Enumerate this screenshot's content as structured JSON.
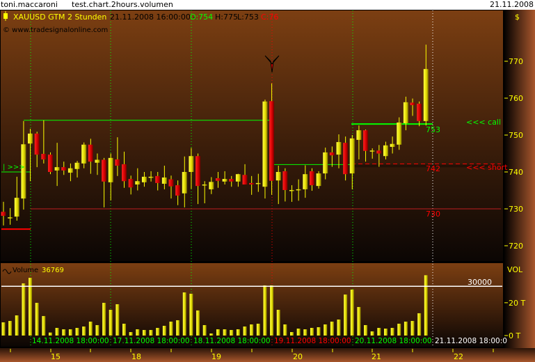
{
  "titlebar": {
    "user": "toni.maccaroni",
    "chart_name": "test.chart.2hours.volumen",
    "date": "21.11.2008"
  },
  "legend": {
    "symbol": "XAUUSD GTM 2 Stunden",
    "timestamp": "21.11.2008 16:00:00 -",
    "open": "O:754",
    "high": "H:775",
    "low": "L:753",
    "close": "C:76",
    "copyright": "© www.tradesignalonline.com",
    "volume_label": "Volume",
    "volume_value": "36769"
  },
  "price_axis": {
    "unit": "$",
    "ticks": [
      "770",
      "760",
      "750",
      "740",
      "730",
      "720"
    ]
  },
  "volume_axis": {
    "title": "VOL",
    "ticks": [
      "20 T",
      "0 T"
    ],
    "level_label": "30000"
  },
  "annotations": {
    "entry_marker": "|  >>>",
    "call_label": "<<<  call",
    "short_label": "<<<  short",
    "level_753": "753",
    "level_742": "742",
    "level_730": "730"
  },
  "session_labels": [
    {
      "text": "14.11.2008 18:00:00",
      "color": "#00ff00"
    },
    {
      "text": "17.11.2008 18:00:00",
      "color": "#00ff00"
    },
    {
      "text": "18.11.2008 18:00:00",
      "color": "#00ff00"
    },
    {
      "text": "19.11.2008 18:00:00",
      "color": "#ff0000"
    },
    {
      "text": "20.11.2008 18:00:00",
      "color": "#00ff00"
    },
    {
      "text": "21.11.2008 18:00:0",
      "color": "#ffffff"
    }
  ],
  "x_axis": {
    "labels": [
      "15",
      "18",
      "19",
      "20",
      "21",
      "22"
    ]
  },
  "colors": {
    "up": "#e8e000",
    "down": "#d40000",
    "call": "#00ff00",
    "short": "#ff0000",
    "axis_text": "#ffff00"
  },
  "chart_data": {
    "type": "candlestick",
    "title": "XAUUSD GTM 2 Stunden",
    "ylim": [
      716,
      777
    ],
    "volume_ylim": [
      0,
      45000
    ],
    "levels": {
      "call": 753,
      "short": 742,
      "support": 730
    },
    "candles": [
      [
        729.2,
        731.9,
        725.5,
        728.1
      ],
      [
        727.7,
        730.2,
        725.7,
        727.7
      ],
      [
        727.9,
        738.7,
        726.8,
        733.0
      ],
      [
        732.8,
        753.8,
        729.8,
        747.5
      ],
      [
        747.7,
        751.7,
        737.5,
        750.4
      ],
      [
        750.4,
        750.9,
        741.3,
        744.7
      ],
      [
        744.9,
        754.0,
        742.3,
        743.4
      ],
      [
        744.7,
        745.3,
        739.4,
        740.0
      ],
      [
        740.4,
        747.9,
        736.2,
        741.3
      ],
      [
        741.3,
        742.8,
        739.2,
        740.4
      ],
      [
        739.8,
        742.3,
        737.5,
        741.0
      ],
      [
        740.8,
        743.0,
        738.5,
        742.5
      ],
      [
        742.3,
        748.0,
        741.0,
        747.4
      ],
      [
        747.4,
        749.0,
        739.5,
        742.8
      ],
      [
        742.5,
        745.0,
        739.2,
        743.3
      ],
      [
        743.3,
        743.8,
        730.4,
        737.4
      ],
      [
        737.2,
        745.0,
        732.3,
        743.8
      ],
      [
        743.4,
        749.4,
        738.9,
        741.7
      ],
      [
        742.1,
        745.5,
        735.7,
        737.5
      ],
      [
        738.1,
        739.0,
        733.9,
        735.8
      ],
      [
        736.6,
        741.0,
        735.0,
        737.5
      ],
      [
        737.2,
        740.0,
        736.0,
        738.7
      ],
      [
        738.7,
        740.2,
        737.4,
        738.7
      ],
      [
        738.9,
        740.0,
        735.0,
        737.0
      ],
      [
        736.8,
        741.7,
        735.3,
        738.5
      ],
      [
        738.0,
        739.0,
        732.8,
        736.1
      ],
      [
        736.4,
        737.7,
        731.0,
        733.6
      ],
      [
        734.2,
        744.2,
        730.4,
        740.0
      ],
      [
        740.0,
        746.5,
        735.4,
        744.3
      ],
      [
        744.3,
        745.0,
        731.3,
        736.2
      ],
      [
        736.6,
        737.5,
        731.5,
        736.6
      ],
      [
        735.3,
        738.6,
        734.0,
        737.3
      ],
      [
        738.3,
        740.0,
        735.7,
        737.6
      ],
      [
        737.4,
        740.2,
        736.6,
        738.1
      ],
      [
        738.1,
        738.9,
        736.0,
        737.4
      ],
      [
        737.4,
        739.5,
        736.0,
        739.4
      ],
      [
        739.2,
        742.1,
        736.6,
        736.6
      ],
      [
        737.0,
        738.9,
        733.8,
        736.6
      ],
      [
        737.0,
        739.5,
        734.6,
        737.0
      ],
      [
        736.0,
        759.6,
        732.8,
        759.1
      ],
      [
        759.2,
        764.0,
        733.8,
        737.6
      ],
      [
        737.7,
        741.7,
        731.3,
        740.0
      ],
      [
        740.2,
        741.0,
        732.0,
        735.1
      ],
      [
        735.1,
        736.4,
        731.9,
        735.1
      ],
      [
        735.3,
        738.0,
        732.2,
        735.3
      ],
      [
        735.3,
        741.8,
        733.0,
        739.4
      ],
      [
        740.2,
        741.0,
        734.9,
        736.4
      ],
      [
        736.2,
        740.2,
        735.5,
        739.6
      ],
      [
        739.6,
        746.6,
        738.0,
        745.3
      ],
      [
        745.3,
        746.9,
        741.4,
        744.5
      ],
      [
        744.7,
        750.2,
        741.0,
        748.1
      ],
      [
        747.9,
        749.6,
        737.7,
        739.4
      ],
      [
        739.6,
        750.0,
        735.3,
        749.1
      ],
      [
        748.7,
        752.6,
        743.4,
        751.3
      ],
      [
        751.3,
        751.5,
        742.8,
        745.7
      ],
      [
        745.8,
        746.4,
        743.6,
        745.8
      ],
      [
        745.8,
        747.3,
        741.4,
        745.0
      ],
      [
        744.3,
        748.2,
        743.4,
        747.2
      ],
      [
        746.8,
        749.6,
        745.0,
        747.6
      ],
      [
        747.4,
        754.8,
        746.0,
        753.4
      ],
      [
        753.2,
        760.4,
        751.3,
        758.9
      ],
      [
        758.8,
        759.9,
        755.2,
        758.1
      ],
      [
        758.5,
        759.1,
        752.4,
        753.8
      ],
      [
        753.8,
        774.5,
        752.6,
        767.9
      ]
    ],
    "volume": [
      8066,
      8900,
      12300,
      31800,
      35200,
      19950,
      11900,
      1840,
      4670,
      3820,
      3820,
      4670,
      5520,
      8490,
      6370,
      19950,
      15700,
      19100,
      7220,
      2120,
      3820,
      3400,
      3400,
      4670,
      5940,
      8490,
      9340,
      26300,
      25500,
      15300,
      6370,
      1270,
      3820,
      3820,
      3400,
      3820,
      5520,
      6790,
      7220,
      30560,
      30560,
      15700,
      6790,
      2120,
      4240,
      3820,
      4670,
      5090,
      6790,
      8490,
      9760,
      25000,
      28000,
      17400,
      6370,
      2550,
      4670,
      4240,
      4670,
      7220,
      8490,
      8900,
      13600,
      36769
    ]
  }
}
